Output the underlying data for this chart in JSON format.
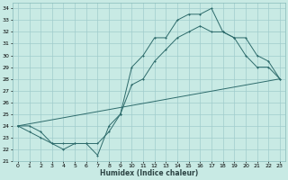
{
  "xlabel": "Humidex (Indice chaleur)",
  "ylabel": "",
  "background_color": "#c8eae4",
  "grid_color": "#a0cccc",
  "line_color": "#2d6b6b",
  "xlim": [
    -0.5,
    23.5
  ],
  "ylim": [
    21,
    34.5
  ],
  "xticks": [
    0,
    1,
    2,
    3,
    4,
    5,
    6,
    7,
    8,
    9,
    10,
    11,
    12,
    13,
    14,
    15,
    16,
    17,
    18,
    19,
    20,
    21,
    22,
    23
  ],
  "yticks": [
    21,
    22,
    23,
    24,
    25,
    26,
    27,
    28,
    29,
    30,
    31,
    32,
    33,
    34
  ],
  "line1_x": [
    0,
    1,
    2,
    3,
    4,
    5,
    6,
    7,
    8,
    9,
    10,
    11,
    12,
    13,
    14,
    15,
    16,
    17,
    18,
    19,
    20,
    21,
    22,
    23
  ],
  "line1_y": [
    24.0,
    23.5,
    23.0,
    22.5,
    22.0,
    22.5,
    22.5,
    21.5,
    24.0,
    25.0,
    29.0,
    30.0,
    31.5,
    31.5,
    33.0,
    33.5,
    33.5,
    34.0,
    32.0,
    31.5,
    30.0,
    29.0,
    29.0,
    28.0
  ],
  "line2_x": [
    0,
    1,
    2,
    3,
    4,
    5,
    6,
    7,
    8,
    9,
    10,
    11,
    12,
    13,
    14,
    15,
    16,
    17,
    18,
    19,
    20,
    21,
    22,
    23
  ],
  "line2_y": [
    24.0,
    24.0,
    23.5,
    22.5,
    22.5,
    22.5,
    22.5,
    22.5,
    23.5,
    25.0,
    27.5,
    28.0,
    29.5,
    30.5,
    31.5,
    32.0,
    32.5,
    32.0,
    32.0,
    31.5,
    31.5,
    30.0,
    29.5,
    28.0
  ],
  "line3_x": [
    0,
    23
  ],
  "line3_y": [
    24.0,
    28.0
  ]
}
